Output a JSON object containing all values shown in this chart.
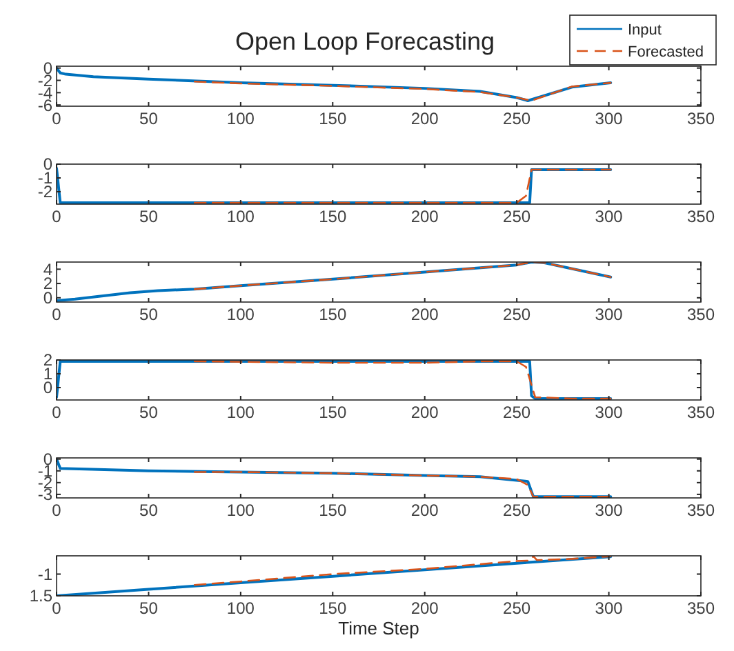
{
  "chart_data": [
    {
      "type": "line",
      "title": "Open Loop Forecasting",
      "xlim": [
        0,
        350
      ],
      "xticks": [
        0,
        50,
        100,
        150,
        200,
        250,
        300,
        350
      ],
      "ylim": [
        -6.2,
        0.3
      ],
      "yticks": [
        -6,
        -4,
        -2,
        0
      ],
      "legend": "top right",
      "series": [
        {
          "name": "Input",
          "color": "#0072bd",
          "line_style": "solid",
          "x": [
            0,
            2,
            5,
            20,
            50,
            100,
            150,
            200,
            230,
            250,
            256,
            280,
            301
          ],
          "values": [
            0,
            -0.8,
            -1.0,
            -1.4,
            -1.8,
            -2.4,
            -2.8,
            -3.3,
            -3.8,
            -4.8,
            -5.3,
            -3.1,
            -2.4
          ]
        },
        {
          "name": "Forecasted",
          "color": "#d95319",
          "line_style": "dashed",
          "x": [
            75,
            100,
            150,
            200,
            230,
            250,
            258,
            280,
            301
          ],
          "values": [
            -2.2,
            -2.5,
            -2.9,
            -3.4,
            -3.9,
            -4.8,
            -5.3,
            -3.0,
            -2.4
          ]
        }
      ]
    },
    {
      "type": "line",
      "xlim": [
        0,
        350
      ],
      "xticks": [
        0,
        50,
        100,
        150,
        200,
        250,
        300,
        350
      ],
      "ylim": [
        -2.9,
        0
      ],
      "yticks": [
        -2,
        -1,
        0
      ],
      "series": [
        {
          "color": "#0072bd",
          "line_style": "solid",
          "x": [
            0,
            2,
            100,
            257,
            258,
            301
          ],
          "values": [
            -0.3,
            -2.8,
            -2.8,
            -2.8,
            -0.4,
            -0.4
          ]
        },
        {
          "color": "#d95319",
          "line_style": "dashed",
          "x": [
            75,
            150,
            200,
            230,
            250,
            255,
            258,
            301
          ],
          "values": [
            -2.8,
            -2.8,
            -2.8,
            -2.8,
            -2.8,
            -2.3,
            -0.4,
            -0.4
          ]
        }
      ]
    },
    {
      "type": "line",
      "xlim": [
        0,
        350
      ],
      "xticks": [
        0,
        50,
        100,
        150,
        200,
        250,
        300,
        350
      ],
      "ylim": [
        -0.6,
        5
      ],
      "yticks": [
        0,
        2,
        4
      ],
      "series": [
        {
          "color": "#0072bd",
          "line_style": "solid",
          "x": [
            0,
            10,
            40,
            55,
            75,
            100,
            150,
            200,
            250,
            258,
            265,
            301
          ],
          "values": [
            -0.4,
            -0.2,
            0.7,
            1.0,
            1.2,
            1.7,
            2.6,
            3.6,
            4.6,
            5.0,
            4.9,
            2.9
          ]
        },
        {
          "color": "#d95319",
          "line_style": "dashed",
          "x": [
            75,
            100,
            150,
            200,
            250,
            258,
            265,
            301
          ],
          "values": [
            1.2,
            1.7,
            2.6,
            3.6,
            4.6,
            5.0,
            4.9,
            2.9
          ]
        }
      ]
    },
    {
      "type": "line",
      "xlim": [
        0,
        350
      ],
      "xticks": [
        0,
        50,
        100,
        150,
        200,
        250,
        300,
        350
      ],
      "ylim": [
        -0.9,
        2
      ],
      "yticks": [
        0,
        1,
        2
      ],
      "series": [
        {
          "color": "#0072bd",
          "line_style": "solid",
          "x": [
            0,
            2,
            257,
            258,
            260,
            301
          ],
          "values": [
            -0.7,
            1.9,
            1.9,
            -0.6,
            -0.8,
            -0.8
          ]
        },
        {
          "color": "#d95319",
          "line_style": "dashed",
          "x": [
            75,
            150,
            200,
            230,
            250,
            255,
            260,
            280,
            301
          ],
          "values": [
            1.9,
            1.8,
            1.8,
            1.9,
            1.9,
            1.5,
            -0.7,
            -0.8,
            -0.8
          ]
        }
      ]
    },
    {
      "type": "line",
      "xlim": [
        0,
        350
      ],
      "xticks": [
        0,
        50,
        100,
        150,
        200,
        250,
        300,
        350
      ],
      "ylim": [
        -3.3,
        0.1
      ],
      "yticks": [
        -3,
        -2,
        -1,
        0
      ],
      "series": [
        {
          "color": "#0072bd",
          "line_style": "solid",
          "x": [
            0,
            2,
            50,
            100,
            150,
            200,
            230,
            250,
            256,
            259,
            301
          ],
          "values": [
            0,
            -0.8,
            -1.0,
            -1.1,
            -1.2,
            -1.4,
            -1.5,
            -1.8,
            -1.9,
            -3.2,
            -3.2
          ]
        },
        {
          "color": "#d95319",
          "line_style": "dashed",
          "x": [
            75,
            100,
            150,
            200,
            230,
            250,
            256,
            259,
            301
          ],
          "values": [
            -1.1,
            -1.1,
            -1.2,
            -1.4,
            -1.5,
            -1.7,
            -2.2,
            -3.2,
            -3.2
          ]
        }
      ]
    },
    {
      "type": "line",
      "xlabel": "Time Step",
      "xlim": [
        0,
        350
      ],
      "xticks": [
        0,
        50,
        100,
        150,
        200,
        250,
        300,
        350
      ],
      "ylim": [
        -1.5,
        -0.58
      ],
      "yticks": [
        {
          "value": -1.5,
          "label": "1.5"
        },
        -1
      ],
      "series": [
        {
          "color": "#0072bd",
          "line_style": "solid",
          "x": [
            0,
            50,
            100,
            150,
            200,
            250,
            301
          ],
          "values": [
            -1.5,
            -1.35,
            -1.2,
            -1.05,
            -0.9,
            -0.75,
            -0.6
          ]
        },
        {
          "color": "#d95319",
          "line_style": "dashed",
          "x": [
            75,
            100,
            150,
            200,
            250,
            257,
            259,
            261,
            280,
            301
          ],
          "values": [
            -1.25,
            -1.17,
            -1.0,
            -0.88,
            -0.7,
            -0.69,
            -0.59,
            -0.68,
            -0.65,
            -0.59
          ]
        }
      ]
    }
  ]
}
